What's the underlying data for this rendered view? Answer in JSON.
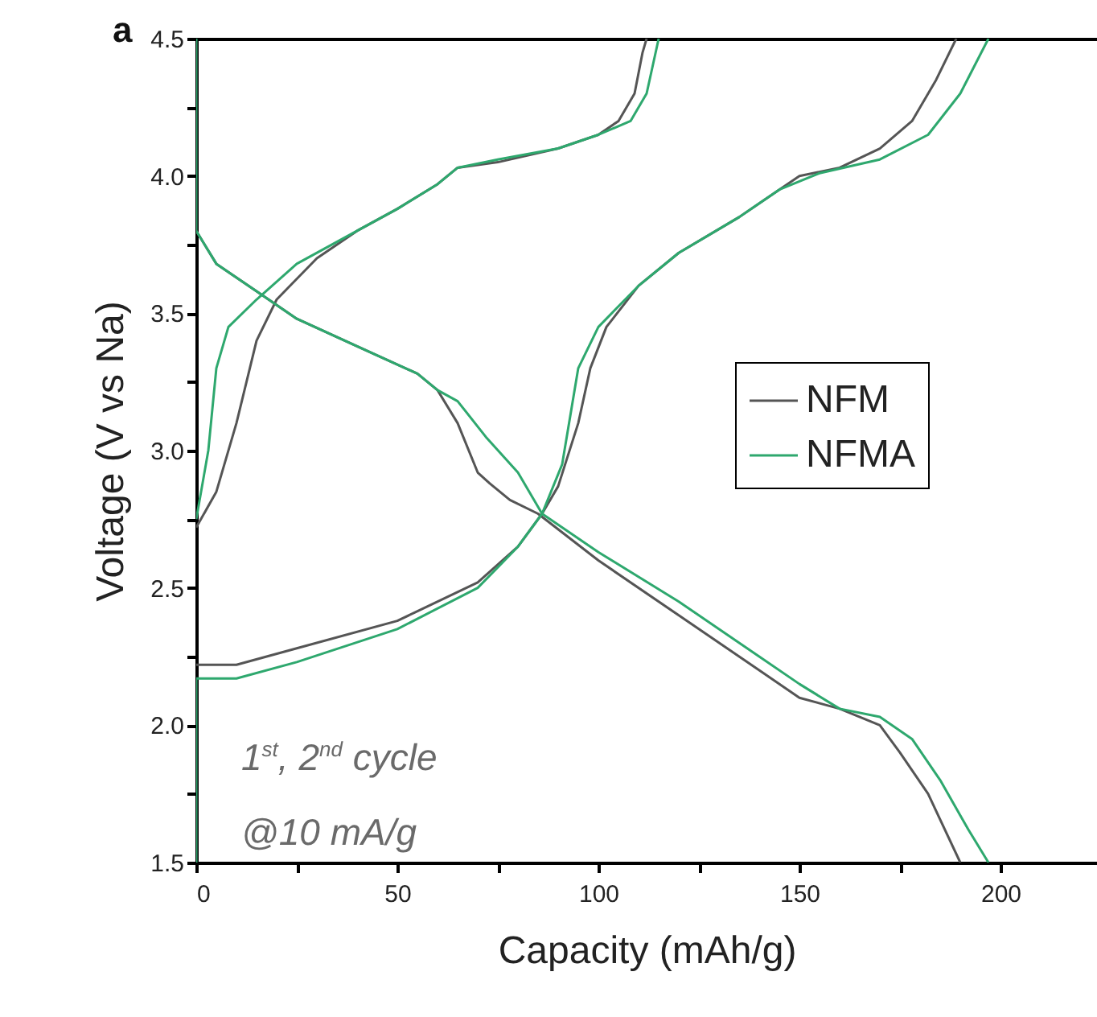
{
  "chart_data": {
    "type": "line",
    "title": "a",
    "xlabel": "Capacity (mAh/g)",
    "ylabel": "Voltage (V vs Na)",
    "annotations": [
      "1$^{st}$, 2$^{nd}$ cycle",
      "@10 mA/g"
    ],
    "xlim": [
      0,
      224
    ],
    "ylim": [
      1.5,
      4.5
    ],
    "xticks": [
      0,
      {
        "value": 25,
        "label": null
      },
      50,
      {
        "value": 75,
        "label": null
      },
      100,
      {
        "value": 125,
        "label": null
      },
      150,
      {
        "value": 175,
        "label": null
      },
      200
    ],
    "yticks": [
      {
        "value": 1.5,
        "label": "1.5"
      },
      {
        "value": 1.75,
        "label": null
      },
      {
        "value": 2,
        "label": "2.0"
      },
      {
        "value": 2.25,
        "label": null
      },
      {
        "value": 2.5,
        "label": "2.5"
      },
      {
        "value": 2.75,
        "label": null
      },
      {
        "value": 3,
        "label": "3.0"
      },
      {
        "value": 3.25,
        "label": null
      },
      {
        "value": 3.5,
        "label": "3.5"
      },
      {
        "value": 3.75,
        "label": null
      },
      {
        "value": 4,
        "label": "4.0"
      },
      {
        "value": 4.25,
        "label": null
      },
      {
        "value": 4.5,
        "label": "4.5"
      }
    ],
    "legend": "right",
    "series": [
      {
        "name": "NFM",
        "color": "#555555",
        "x": [
          0,
          5,
          10,
          15,
          20,
          30,
          40,
          50,
          60,
          65,
          75,
          90,
          100,
          105,
          109,
          111,
          112,
          null,
          0,
          5,
          15,
          25,
          40,
          55,
          60,
          65,
          70,
          73,
          78,
          85,
          100,
          120,
          140,
          150,
          160,
          170,
          175,
          182,
          190,
          null,
          0,
          10,
          25,
          50,
          70,
          80,
          86,
          90,
          95,
          98,
          102,
          110,
          120,
          135,
          145,
          150,
          160,
          170,
          178,
          184,
          189
        ],
        "values": [
          2.72,
          2.85,
          3.1,
          3.4,
          3.55,
          3.7,
          3.8,
          3.88,
          3.97,
          4.03,
          4.05,
          4.1,
          4.15,
          4.2,
          4.3,
          4.45,
          4.5,
          null,
          3.8,
          3.68,
          3.58,
          3.48,
          3.38,
          3.28,
          3.22,
          3.1,
          2.92,
          2.88,
          2.82,
          2.77,
          2.6,
          2.4,
          2.2,
          2.1,
          2.06,
          2.0,
          1.9,
          1.75,
          1.5,
          null,
          2.22,
          2.22,
          2.28,
          2.38,
          2.52,
          2.65,
          2.77,
          2.87,
          3.1,
          3.3,
          3.45,
          3.6,
          3.72,
          3.85,
          3.95,
          4.0,
          4.03,
          4.1,
          4.2,
          4.35,
          4.5
        ]
      },
      {
        "name": "NFMA",
        "color": "#2ea86e",
        "x": [
          0,
          3,
          5,
          8,
          15,
          25,
          40,
          50,
          60,
          65,
          75,
          90,
          100,
          108,
          112,
          115,
          null,
          0,
          0,
          5,
          15,
          25,
          40,
          55,
          60,
          65,
          72,
          80,
          86,
          100,
          120,
          140,
          150,
          160,
          170,
          178,
          185,
          192,
          197,
          null,
          0,
          0,
          10,
          25,
          50,
          70,
          80,
          86,
          91,
          95,
          100,
          110,
          120,
          135,
          145,
          155,
          170,
          182,
          190,
          197
        ],
        "values": [
          2.75,
          3.0,
          3.3,
          3.45,
          3.55,
          3.68,
          3.8,
          3.88,
          3.97,
          4.03,
          4.06,
          4.1,
          4.15,
          4.2,
          4.3,
          4.5,
          null,
          4.5,
          3.8,
          3.68,
          3.58,
          3.48,
          3.38,
          3.28,
          3.22,
          3.18,
          3.05,
          2.92,
          2.77,
          2.63,
          2.45,
          2.25,
          2.15,
          2.06,
          2.03,
          1.95,
          1.8,
          1.62,
          1.5,
          null,
          1.5,
          2.17,
          2.17,
          2.23,
          2.35,
          2.5,
          2.65,
          2.77,
          2.95,
          3.3,
          3.45,
          3.6,
          3.72,
          3.85,
          3.95,
          4.01,
          4.06,
          4.15,
          4.3,
          4.5
        ]
      }
    ]
  }
}
